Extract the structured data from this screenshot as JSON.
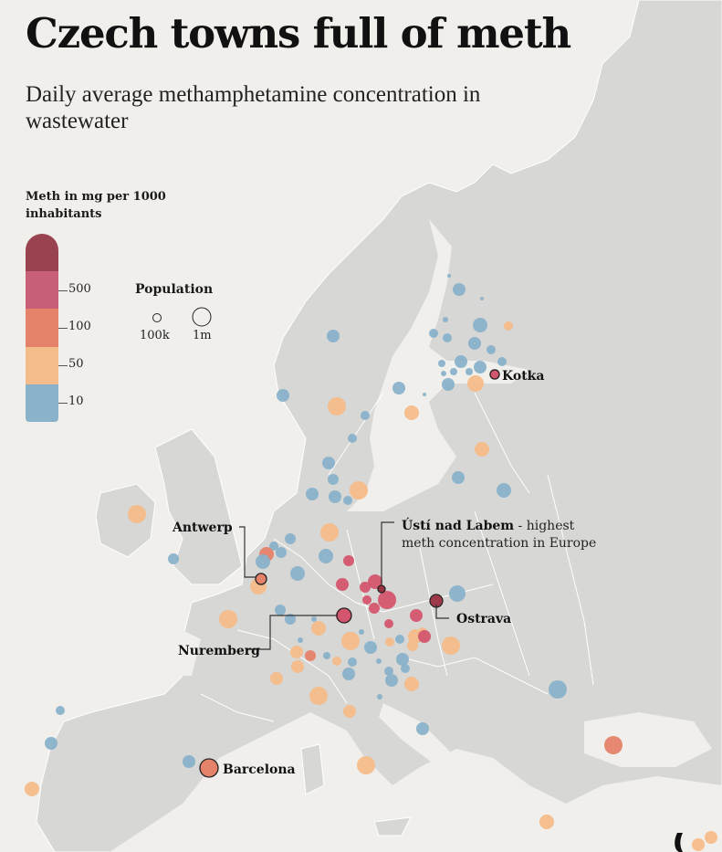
{
  "title": "Czech towns full of meth",
  "subtitle": "Daily average methamphetamine concentration in wastewater",
  "legend": {
    "color_title": "Meth in mg per 1000 inhabitants",
    "color_scale": [
      {
        "label": "",
        "color": "#9a4350"
      },
      {
        "label": "500",
        "color": "#c9607a"
      },
      {
        "label": "100",
        "color": "#e5826a"
      },
      {
        "label": "50",
        "color": "#f4bc8a"
      },
      {
        "label": "10",
        "color": "#8ab2cb"
      }
    ],
    "size_title": "Population",
    "size_items": [
      {
        "label": "100k"
      },
      {
        "label": "1m"
      }
    ]
  },
  "labels": {
    "kotka": "Kotka",
    "antwerp": "Antwerp",
    "nuremberg": "Nuremberg",
    "barcelona": "Barcelona",
    "ostrava": "Ostrava",
    "usti_bold": "Ústí nad Labem",
    "usti_rest": " - highest",
    "usti_line2": "meth concentration in Europe"
  },
  "colors": {
    "background": "#f1efeb",
    "land": "#d7d7d5",
    "border": "#ffffff",
    "blue": "#8ab2cb",
    "peach": "#f4bc8a",
    "orange": "#e5826a",
    "pink": "#d4566e",
    "dark": "#9a3040"
  }
}
